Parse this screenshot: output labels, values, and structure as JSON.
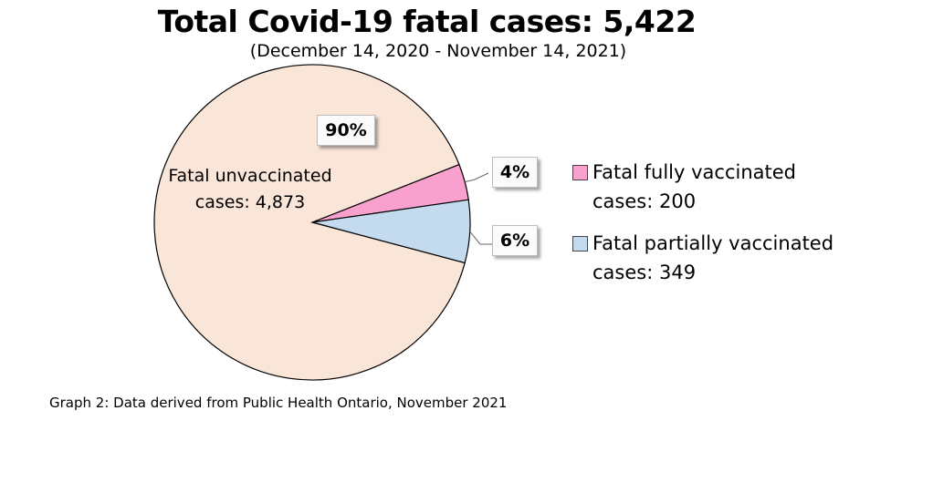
{
  "chart_data": {
    "type": "pie",
    "title": "Total Covid-19 fatal cases: 5,422",
    "subtitle": "(December 14, 2020 - November 14, 2021)",
    "slices": [
      {
        "name": "Fatal unvaccinated",
        "label_line1": "Fatal unvaccinated",
        "label_line2": "cases: 4,873",
        "value": 4873,
        "percent_label": "90%",
        "color": "#fae5d9"
      },
      {
        "name": "Fatal fully vaccinated",
        "label_line1": "Fatal fully vaccinated",
        "label_line2": "cases: 200",
        "value": 200,
        "percent_label": "4%",
        "color": "#f8a1cf"
      },
      {
        "name": "Fatal partially vaccinated",
        "label_line1": "Fatal partially vaccinated",
        "label_line2": "cases: 349",
        "value": 349,
        "percent_label": "6%",
        "color": "#c4dbef"
      }
    ],
    "legend": "right",
    "caption": "Graph 2: Data derived from Public Health Ontario, November 2021"
  }
}
